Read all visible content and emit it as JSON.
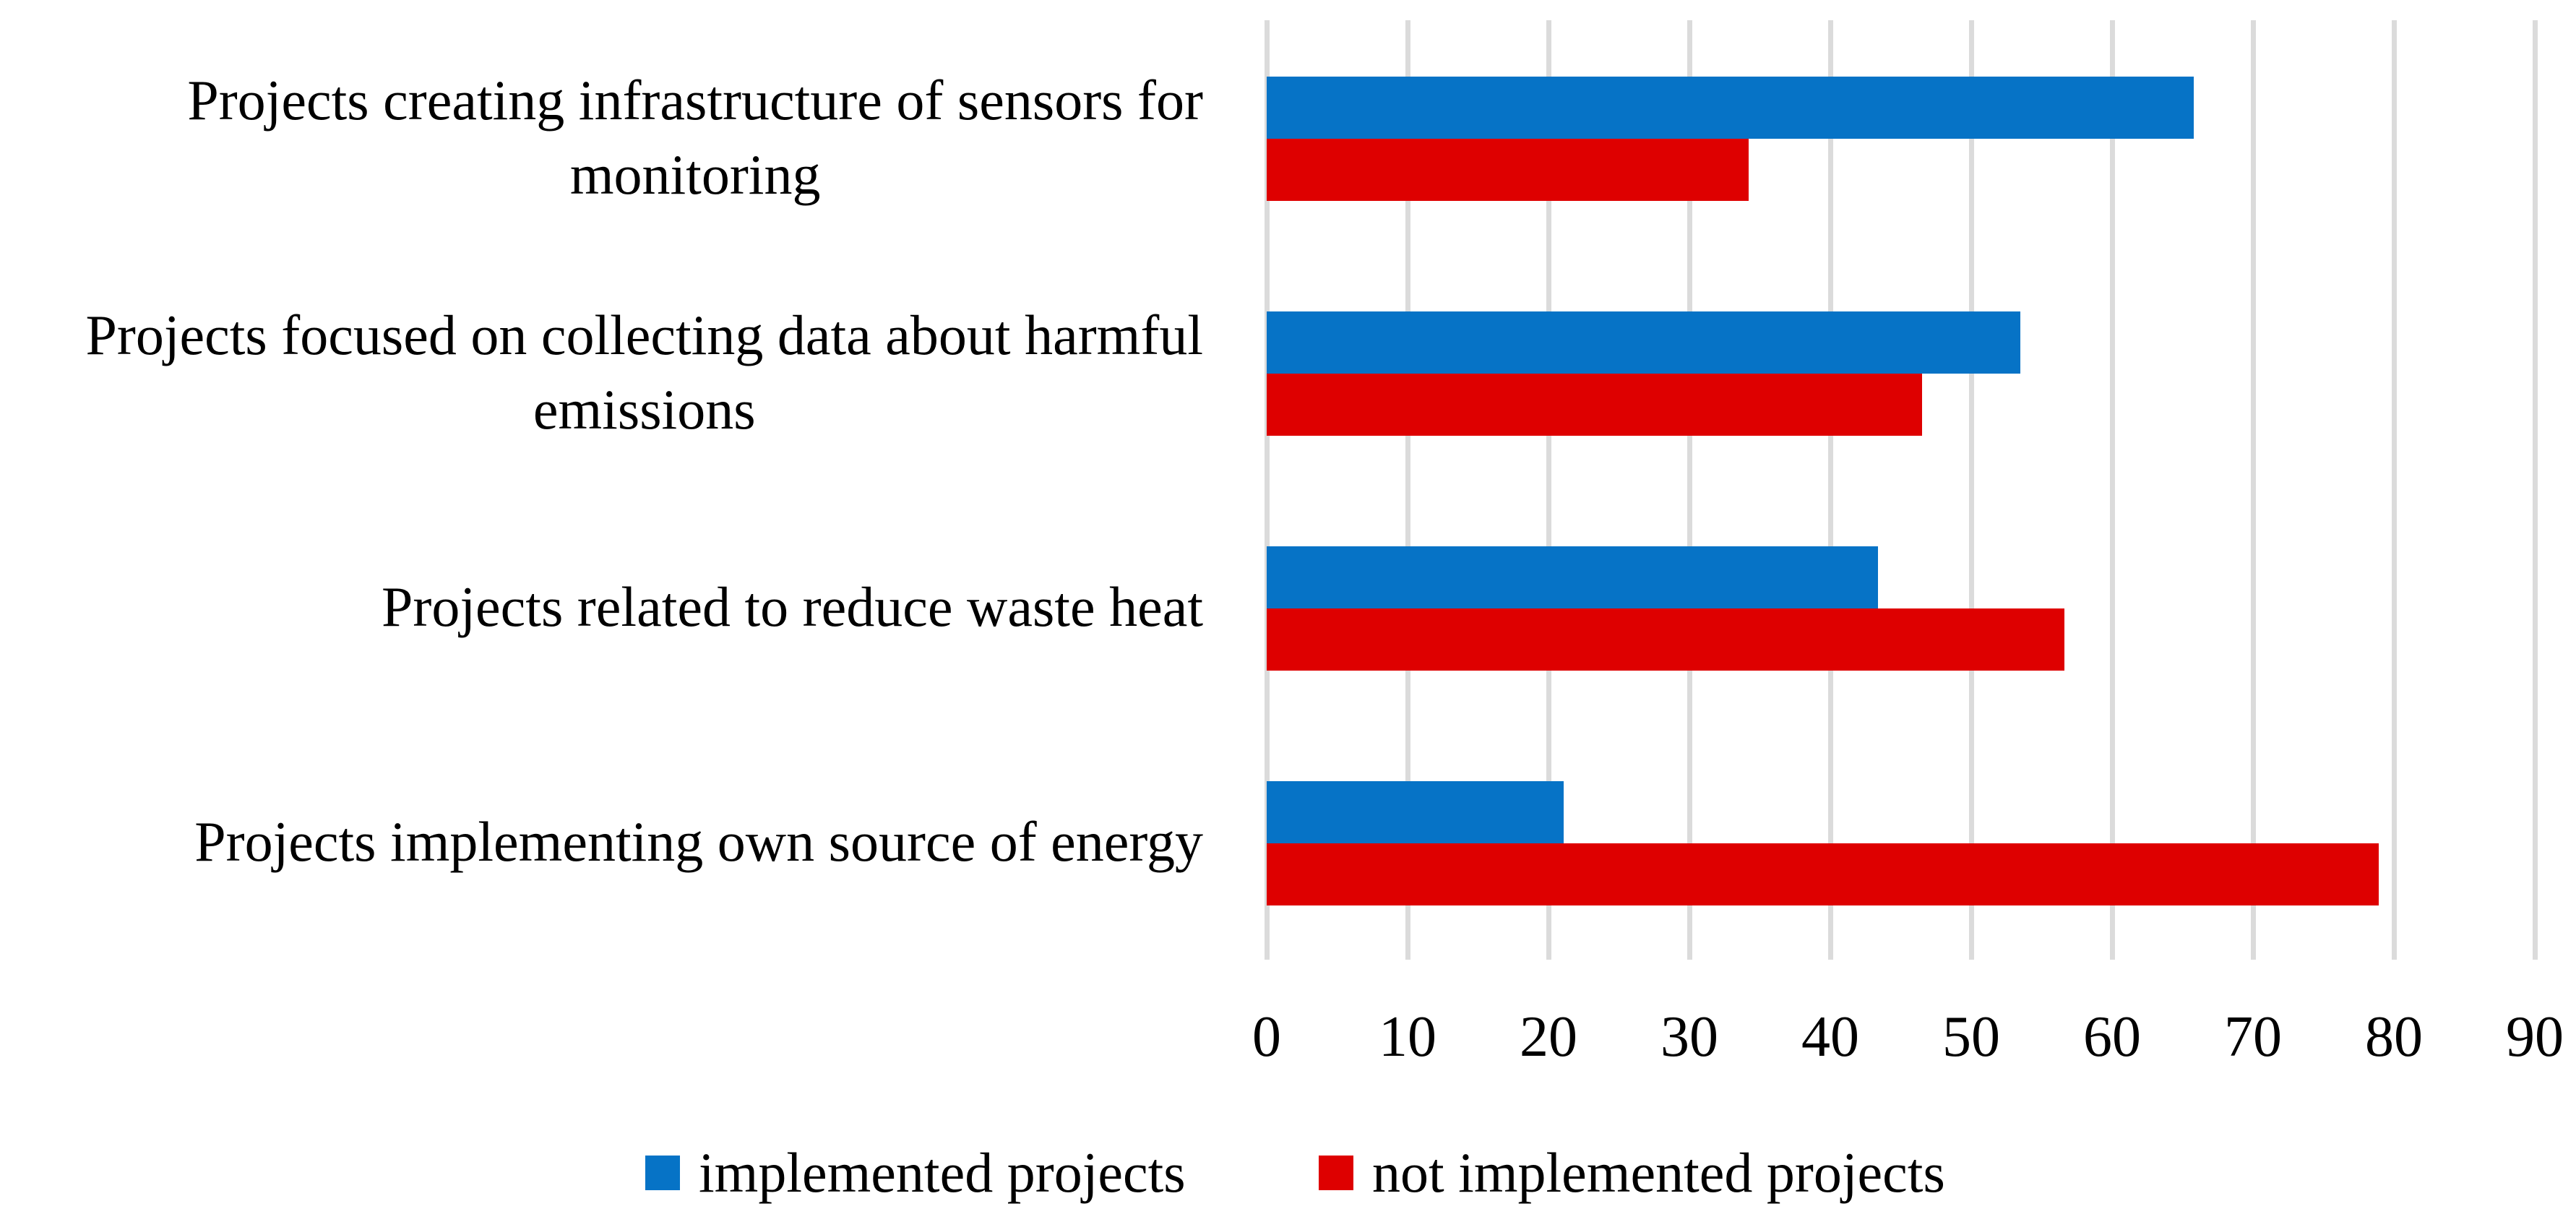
{
  "chart_data": {
    "type": "bar",
    "orientation": "horizontal",
    "title": "",
    "xlabel": "",
    "ylabel": "",
    "categories": [
      "Projects creating infrastructure of sensors for monitoring",
      "Projects focused on collecting data about harmful emissions",
      "Projects related to reduce waste heat",
      "Projects implementing own source of energy"
    ],
    "categories_wrapped": [
      [
        "Projects creating infrastructure of sensors for",
        "monitoring"
      ],
      [
        "Projects focused on collecting data about harmful",
        "emissions"
      ],
      [
        "Projects related to reduce waste heat"
      ],
      [
        "Projects implementing own source of energy"
      ]
    ],
    "series": [
      {
        "name": "implemented projects",
        "color": "#0673c6",
        "values": [
          65.8,
          53.5,
          43.4,
          21.1
        ]
      },
      {
        "name": "not implemented projects",
        "color": "#de0000",
        "values": [
          34.2,
          46.5,
          56.6,
          78.9
        ]
      }
    ],
    "x_axis": {
      "min": 0,
      "max": 90,
      "tick_interval": 10,
      "ticks": [
        0,
        10,
        20,
        30,
        40,
        50,
        60,
        70,
        80,
        90
      ]
    },
    "grid": "vertical-gridlines-on",
    "gridline_color": "#dbdbdb",
    "background_color": "#ffffff",
    "text_color": "#000000",
    "legend_position": "bottom"
  }
}
